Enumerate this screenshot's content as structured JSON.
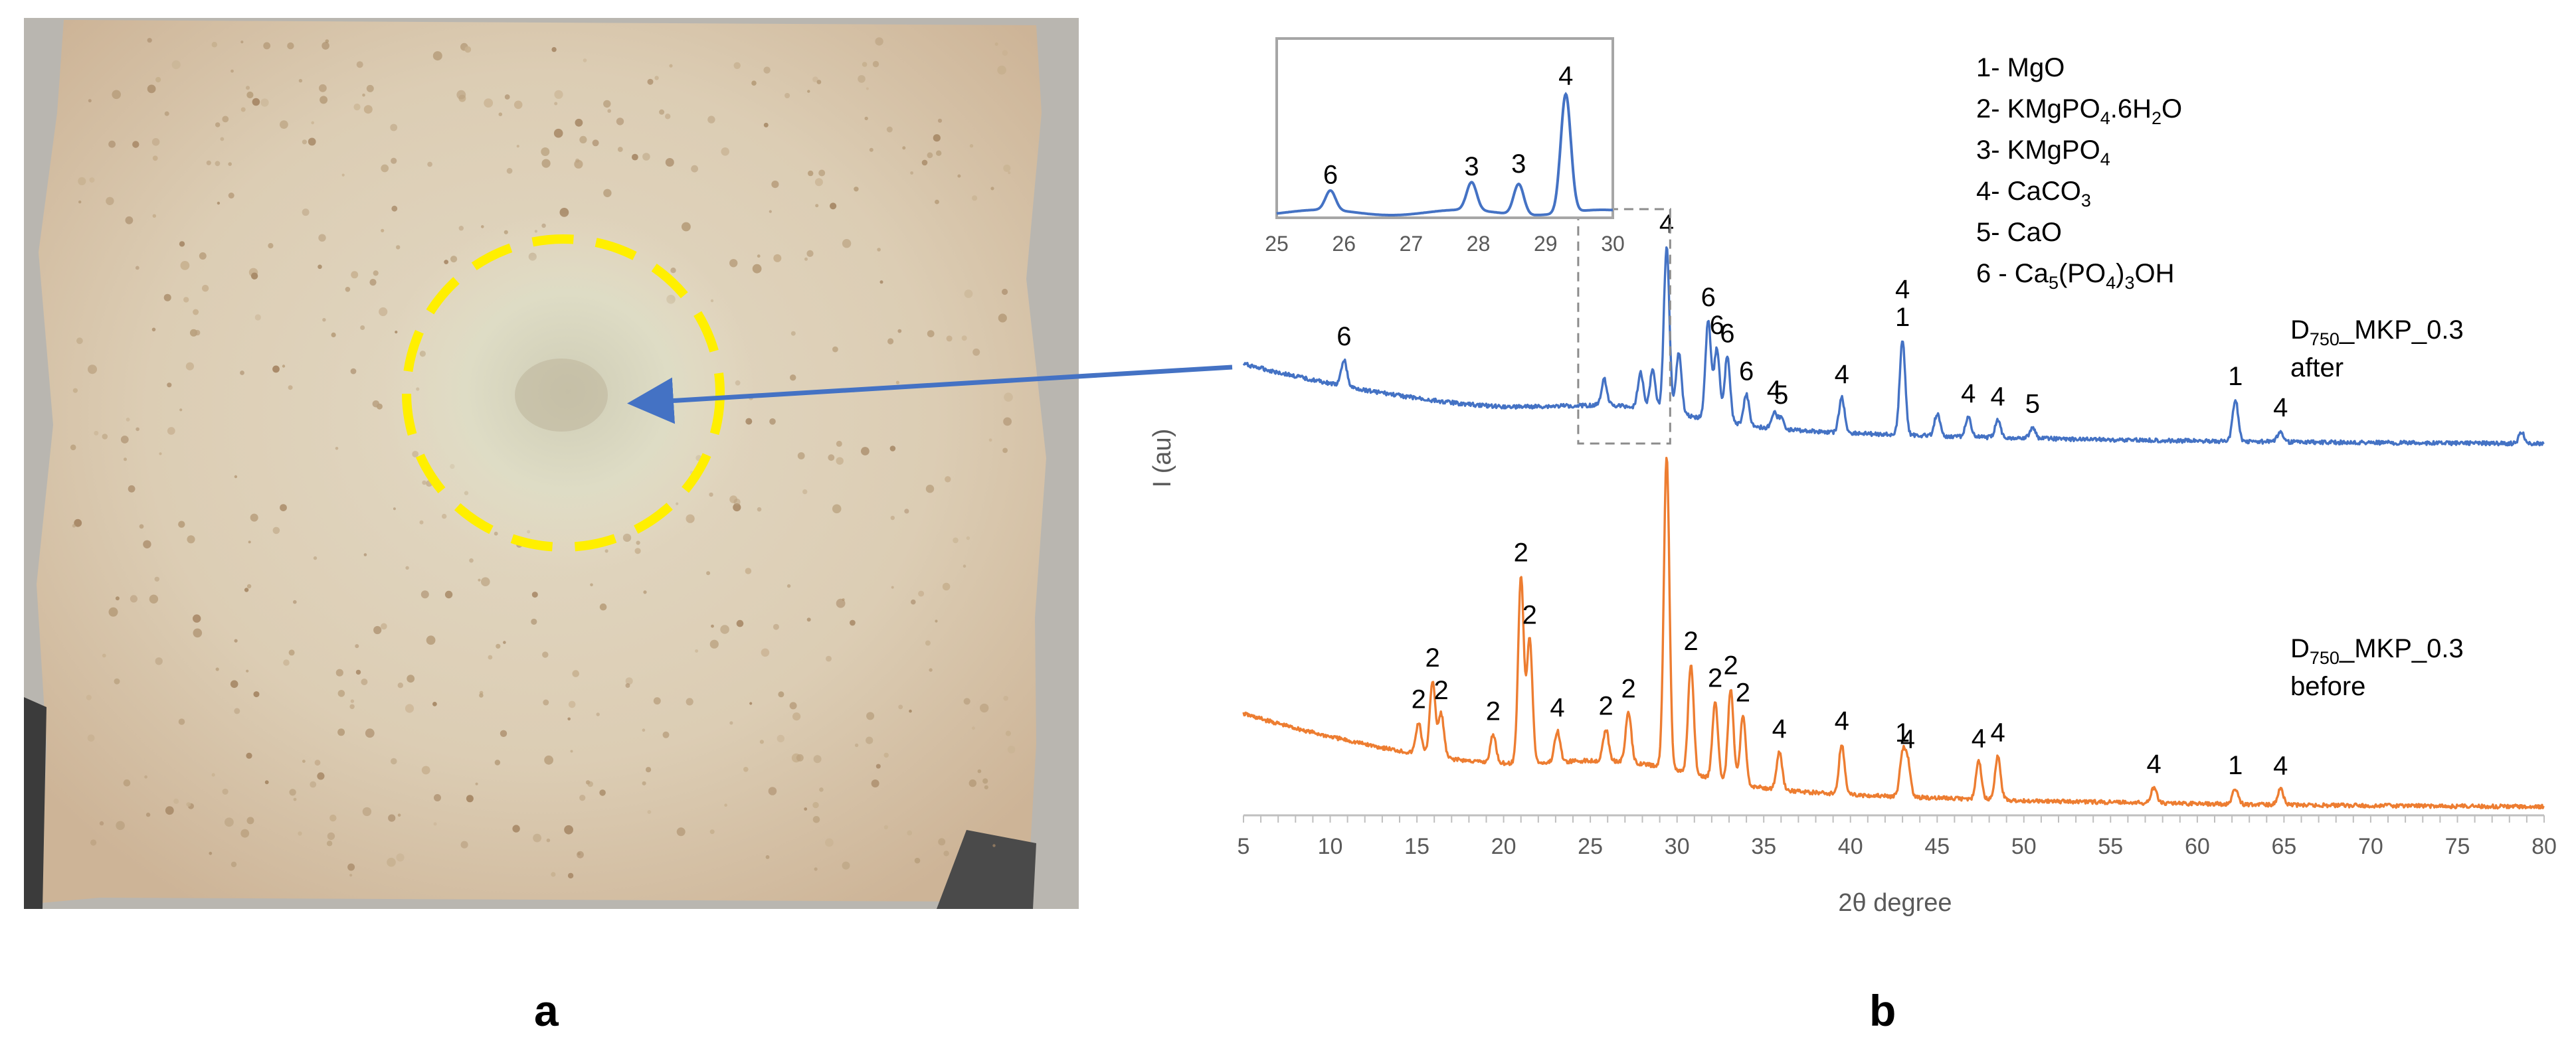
{
  "panels": {
    "a": "a",
    "b": "b"
  },
  "photo": {
    "description_label": ""
  },
  "chart_data": {
    "type": "line",
    "xlabel": "2θ degree",
    "ylabel": "I (au)",
    "xlim": [
      5,
      80
    ],
    "xticks": [
      5,
      10,
      15,
      20,
      25,
      30,
      35,
      40,
      45,
      50,
      55,
      60,
      65,
      70,
      75,
      80
    ],
    "grid": false,
    "series": [
      {
        "name_main": "D",
        "name_sub": "750",
        "name_rest": "_MKP_0.3",
        "name_second": "after",
        "color": "#4472c4",
        "peaks": [
          {
            "x": 10.8,
            "h": 0.12,
            "label": "6"
          },
          {
            "x": 25.8,
            "h": 0.12,
            "label": ""
          },
          {
            "x": 27.9,
            "h": 0.16,
            "label": ""
          },
          {
            "x": 28.6,
            "h": 0.18,
            "label": ""
          },
          {
            "x": 29.4,
            "h": 0.75,
            "label": "4"
          },
          {
            "x": 30.1,
            "h": 0.28,
            "label": ""
          },
          {
            "x": 31.8,
            "h": 0.45,
            "label": "6"
          },
          {
            "x": 32.3,
            "h": 0.33,
            "label": "6"
          },
          {
            "x": 32.9,
            "h": 0.3,
            "label": "6"
          },
          {
            "x": 34.0,
            "h": 0.14,
            "label": "6"
          },
          {
            "x": 35.6,
            "h": 0.07,
            "label": "4"
          },
          {
            "x": 36.0,
            "h": 0.05,
            "label": "5"
          },
          {
            "x": 39.5,
            "h": 0.16,
            "label": "4"
          },
          {
            "x": 43.0,
            "h": 0.43,
            "label": "4\n1"
          },
          {
            "x": 45.0,
            "h": 0.1,
            "label": ""
          },
          {
            "x": 46.8,
            "h": 0.09,
            "label": "4"
          },
          {
            "x": 48.5,
            "h": 0.08,
            "label": "4"
          },
          {
            "x": 50.5,
            "h": 0.05,
            "label": "5"
          },
          {
            "x": 62.2,
            "h": 0.19,
            "label": "1"
          },
          {
            "x": 64.8,
            "h": 0.05,
            "label": "4"
          },
          {
            "x": 78.7,
            "h": 0.05,
            "label": ""
          }
        ]
      },
      {
        "name_main": "D",
        "name_sub": "750",
        "name_rest": "_MKP_0.3",
        "name_second": "before",
        "color": "#ed7d31",
        "peaks": [
          {
            "x": 15.1,
            "h": 0.1,
            "label": "2"
          },
          {
            "x": 15.9,
            "h": 0.24,
            "label": "2"
          },
          {
            "x": 16.4,
            "h": 0.14,
            "label": "2"
          },
          {
            "x": 19.4,
            "h": 0.09,
            "label": "2"
          },
          {
            "x": 21.0,
            "h": 0.6,
            "label": "2"
          },
          {
            "x": 21.5,
            "h": 0.4,
            "label": "2"
          },
          {
            "x": 23.1,
            "h": 0.1,
            "label": "4"
          },
          {
            "x": 25.9,
            "h": 0.1,
            "label": "2"
          },
          {
            "x": 27.2,
            "h": 0.16,
            "label": "2"
          },
          {
            "x": 29.4,
            "h": 1.0,
            "label": ""
          },
          {
            "x": 30.8,
            "h": 0.35,
            "label": "2"
          },
          {
            "x": 32.2,
            "h": 0.25,
            "label": "2"
          },
          {
            "x": 33.1,
            "h": 0.3,
            "label": "2"
          },
          {
            "x": 33.8,
            "h": 0.22,
            "label": "2"
          },
          {
            "x": 35.9,
            "h": 0.12,
            "label": "4"
          },
          {
            "x": 39.5,
            "h": 0.16,
            "label": "4"
          },
          {
            "x": 43.0,
            "h": 0.13,
            "label": "1"
          },
          {
            "x": 43.3,
            "h": 0.11,
            "label": "4"
          },
          {
            "x": 47.4,
            "h": 0.12,
            "label": "4"
          },
          {
            "x": 48.5,
            "h": 0.14,
            "label": "4"
          },
          {
            "x": 57.5,
            "h": 0.05,
            "label": "4"
          },
          {
            "x": 62.2,
            "h": 0.05,
            "label": "1"
          },
          {
            "x": 64.8,
            "h": 0.05,
            "label": "4"
          }
        ]
      }
    ],
    "legend": [
      {
        "n": "1",
        "parts": [
          {
            "t": "- MgO"
          }
        ]
      },
      {
        "n": "2",
        "parts": [
          {
            "t": "- KMgPO"
          },
          {
            "t": "4",
            "sub": true
          },
          {
            "t": ".6H"
          },
          {
            "t": "2",
            "sub": true
          },
          {
            "t": "O"
          }
        ]
      },
      {
        "n": "3",
        "parts": [
          {
            "t": "- KMgPO"
          },
          {
            "t": "4",
            "sub": true
          }
        ]
      },
      {
        "n": "4",
        "parts": [
          {
            "t": "- CaCO"
          },
          {
            "t": "3",
            "sub": true
          }
        ]
      },
      {
        "n": "5",
        "parts": [
          {
            "t": "- CaO"
          }
        ]
      },
      {
        "n": "6",
        "parts": [
          {
            "t": " - Ca"
          },
          {
            "t": "5",
            "sub": true
          },
          {
            "t": "(PO"
          },
          {
            "t": "4",
            "sub": true
          },
          {
            "t": ")"
          },
          {
            "t": "3",
            "sub": true
          },
          {
            "t": "OH"
          }
        ]
      }
    ],
    "inset": {
      "xlim": [
        25,
        30
      ],
      "xticks": [
        25,
        26,
        27,
        28,
        29,
        30
      ],
      "peaks": [
        {
          "x": 25.8,
          "h": 0.14,
          "label": "6"
        },
        {
          "x": 27.9,
          "h": 0.2,
          "label": "3"
        },
        {
          "x": 28.6,
          "h": 0.22,
          "label": "3"
        },
        {
          "x": 29.3,
          "h": 0.85,
          "label": "4"
        }
      ]
    }
  },
  "colors": {
    "marker_circle": "#ffef00",
    "arrow": "#4472c4",
    "inset_frame": "#a6a6a6",
    "zoom_box": "#8c8c8c"
  }
}
